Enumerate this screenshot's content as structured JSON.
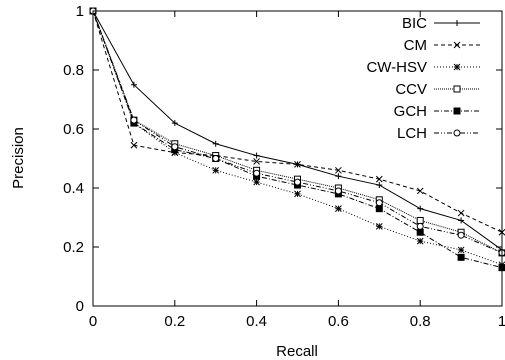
{
  "chart_data": {
    "type": "line",
    "title": "",
    "xlabel": "Recall",
    "ylabel": "Precision",
    "xlim": [
      0,
      1
    ],
    "ylim": [
      0,
      1
    ],
    "x_ticks": [
      "0",
      "0.2",
      "0.4",
      "0.6",
      "0.8",
      "1"
    ],
    "y_ticks": [
      "0",
      "0.2",
      "0.4",
      "0.6",
      "0.8",
      "1"
    ],
    "grid": false,
    "legend_position": "top-right",
    "x": [
      0,
      0.1,
      0.2,
      0.3,
      0.4,
      0.5,
      0.6,
      0.7,
      0.8,
      0.9,
      1.0
    ],
    "series": [
      {
        "name": "BIC",
        "marker": "plus",
        "dash": "solid",
        "values": [
          1.0,
          0.75,
          0.62,
          0.55,
          0.51,
          0.48,
          0.44,
          0.41,
          0.33,
          0.29,
          0.19
        ]
      },
      {
        "name": "CM",
        "marker": "cross",
        "dash": "dashed",
        "values": [
          1.0,
          0.545,
          0.52,
          0.51,
          0.49,
          0.48,
          0.46,
          0.43,
          0.39,
          0.315,
          0.25
        ]
      },
      {
        "name": "CW-HSV",
        "marker": "star",
        "dash": "dotted",
        "values": [
          1.0,
          0.62,
          0.52,
          0.46,
          0.42,
          0.38,
          0.33,
          0.27,
          0.22,
          0.19,
          0.14
        ]
      },
      {
        "name": "CCV",
        "marker": "open-square",
        "dash": "finedot",
        "values": [
          1.0,
          0.63,
          0.55,
          0.51,
          0.46,
          0.43,
          0.4,
          0.36,
          0.29,
          0.25,
          0.18
        ]
      },
      {
        "name": "GCH",
        "marker": "filled-square",
        "dash": "dashdot",
        "values": [
          1.0,
          0.62,
          0.53,
          0.5,
          0.44,
          0.41,
          0.38,
          0.33,
          0.25,
          0.165,
          0.13
        ]
      },
      {
        "name": "LCH",
        "marker": "open-circle",
        "dash": "dashdotdot",
        "values": [
          1.0,
          0.63,
          0.54,
          0.5,
          0.45,
          0.42,
          0.39,
          0.35,
          0.27,
          0.24,
          0.18
        ]
      }
    ]
  }
}
